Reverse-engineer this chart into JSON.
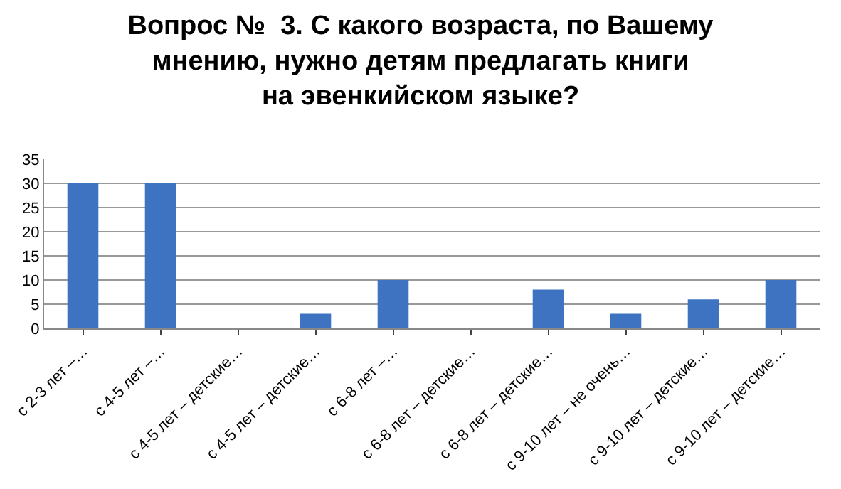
{
  "chart_data": {
    "type": "bar",
    "title": "Вопрос №  3. С какого возраста, по Вашему\nмнению, нужно детям предлагать книги\nна эвенкийском языке?",
    "categories": [
      "с 2-3 лет –…",
      "с 4-5 лет –…",
      "с 4-5 лет – детские…",
      "с 4-5 лет – детские…",
      "с 6-8 лет –…",
      "с 6-8 лет – детские…",
      "с 6-8 лет – детские…",
      "с 9-10 лет – не очень…",
      "с 9-10 лет – детские…",
      "с 9-10 лет – детские…"
    ],
    "values": [
      30,
      30,
      0,
      3,
      10,
      0,
      8,
      3,
      6,
      10
    ],
    "color": "#3d73c0",
    "ylim": [
      0,
      35
    ],
    "yticks": [
      0,
      5,
      10,
      15,
      20,
      25,
      30,
      35
    ],
    "grid": "y"
  }
}
